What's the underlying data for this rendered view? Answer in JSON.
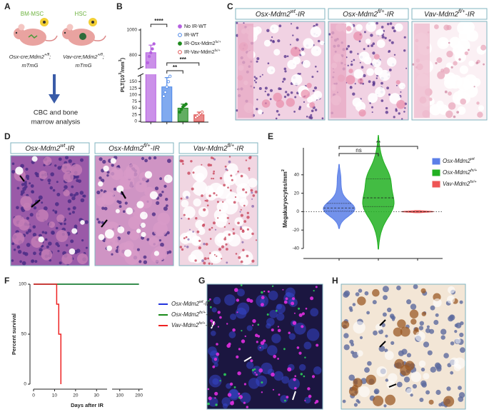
{
  "panel_labels": [
    "A",
    "B",
    "C",
    "D",
    "E",
    "F",
    "G",
    "H"
  ],
  "schematic": {
    "cell_labels": [
      "BM-MSC",
      "HSC"
    ],
    "mice": [
      {
        "line1": [
          "Osx-cre;Mdm2",
          "+/fl",
          ";"
        ],
        "line2": "mTmG"
      },
      {
        "line1": [
          "Vav-cre;Mdm2",
          "+/fl",
          ";"
        ],
        "line2": "mTmG"
      }
    ],
    "outcome": [
      "CBC and bone",
      "marrow analysis"
    ]
  },
  "histology_c": {
    "titles": [
      [
        "Osx-Mdm2",
        "wt",
        "-IR"
      ],
      [
        "Osx-Mdm2",
        "fl/+",
        "-IR"
      ],
      [
        "Vav-Mdm2",
        "fl/+",
        "-IR"
      ]
    ]
  },
  "histology_d": {
    "titles": [
      [
        "Osx-Mdm2",
        "wt",
        "-IR"
      ],
      [
        "Osx-Mdm2",
        "fl/+",
        "-IR"
      ],
      [
        "Vav-Mdm2",
        "fl/+",
        "-IR"
      ]
    ]
  },
  "chart_data": [
    {
      "type": "bar",
      "y_label": [
        "PLT(10",
        "3",
        "/mm",
        "3",
        ")"
      ],
      "categories": [
        null,
        null,
        null,
        null
      ],
      "values": [
        820,
        130,
        50,
        25
      ],
      "errors": [
        60,
        35,
        15,
        10
      ],
      "points": [
        [
          740,
          790,
          820,
          850,
          890
        ],
        [
          95,
          110,
          130,
          150,
          170
        ],
        [
          35,
          45,
          55,
          60,
          65
        ],
        [
          15,
          20,
          25,
          30,
          35
        ]
      ],
      "colors": [
        "#b561e0",
        "#4a86e8",
        "#1e8a1e",
        "#e05555"
      ],
      "markers": [
        "filled",
        "open",
        "filled",
        "open"
      ],
      "legend": [
        "No IR-WT",
        "IR-WT",
        [
          "IR-Osx-Mdm2",
          "fx/+"
        ],
        [
          "IR-Vav-Mdm2",
          "fx/+"
        ]
      ],
      "ylim": [
        0,
        1000
      ],
      "axis_break": [
        175,
        700
      ],
      "yticks": [
        0,
        25,
        50,
        75,
        100,
        125,
        150,
        800,
        1000
      ],
      "annotations": [
        {
          "text": "****",
          "from": 0,
          "to": 1
        },
        {
          "text": "***",
          "from": 1,
          "to": 3
        },
        {
          "text": "**",
          "from": 1,
          "to": 2
        }
      ]
    },
    {
      "type": "violin",
      "y_label": [
        "Megakaryocytes/mm",
        "2"
      ],
      "ylim": [
        -40,
        60
      ],
      "yticks": [
        -40,
        -20,
        0,
        20,
        40
      ],
      "series": [
        {
          "name": [
            "Osx-Mdm2",
            "wt"
          ],
          "color": "#5b7fe8",
          "values": [
            -5,
            0,
            0,
            0,
            1,
            2,
            3,
            4,
            5,
            6,
            8,
            10,
            15,
            25,
            38
          ]
        },
        {
          "name": [
            "Osx-Mdm2",
            "fx/+"
          ],
          "color": "#22b022",
          "values": [
            -18,
            -5,
            0,
            2,
            5,
            6,
            8,
            10,
            12,
            15,
            20,
            25,
            30,
            35,
            36,
            38,
            40,
            45,
            60
          ]
        },
        {
          "name": [
            "Vav-Mdm2",
            "fx/+"
          ],
          "color": "#ee5555",
          "values": [
            0,
            0,
            0,
            0,
            0
          ]
        }
      ],
      "annotations": [
        {
          "text": "ns",
          "from": 0,
          "to": 1
        },
        {
          "text": "**",
          "from": 0,
          "to": 2
        }
      ]
    },
    {
      "type": "line",
      "y_label": "Percent survival",
      "x_label": "Days after IR",
      "xlim": [
        0,
        220
      ],
      "axis_break": [
        35,
        60
      ],
      "xticks": [
        0,
        10,
        20,
        30,
        100,
        200
      ],
      "ylim": [
        0,
        100
      ],
      "yticks": [
        0,
        50,
        100
      ],
      "series": [
        {
          "name": [
            "Osx-Mdm2",
            "wt",
            "-IR"
          ],
          "color": "#2233dd",
          "x": [
            0,
            30,
            100,
            200
          ],
          "values": [
            100,
            100,
            100,
            100
          ]
        },
        {
          "name": [
            "Osx-Mdm2",
            "fx/+",
            "-IR"
          ],
          "color": "#1a8a1a",
          "x": [
            0,
            30,
            100,
            200
          ],
          "values": [
            100,
            100,
            100,
            100
          ]
        },
        {
          "name": [
            "Vav-Mdm2",
            "fx/+",
            "-IR"
          ],
          "color": "#ee2222",
          "x": [
            0,
            11,
            11,
            12,
            12,
            13,
            13
          ],
          "values": [
            100,
            100,
            80,
            80,
            50,
            50,
            0
          ]
        }
      ]
    }
  ]
}
